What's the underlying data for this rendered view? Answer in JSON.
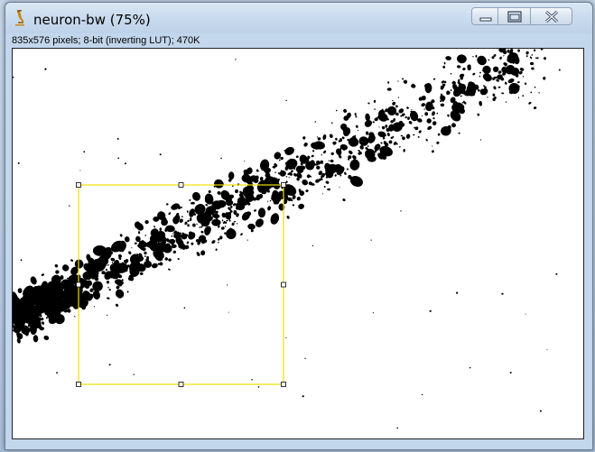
{
  "window": {
    "title": "neuron-bw (75%)",
    "info_line": "835x576 pixels; 8-bit (inverting LUT); 470K"
  },
  "controls": {
    "minimize_icon": "minimize-icon",
    "maximize_icon": "maximize-icon",
    "close_icon": "close-icon"
  },
  "app_icon": "microscope-icon",
  "colors": {
    "selection": "#f0e000",
    "handle_fill": "#ffffff",
    "foreground": "#000000",
    "background": "#ffffff"
  },
  "selection": {
    "type": "rectangle",
    "handle_count": 8
  }
}
